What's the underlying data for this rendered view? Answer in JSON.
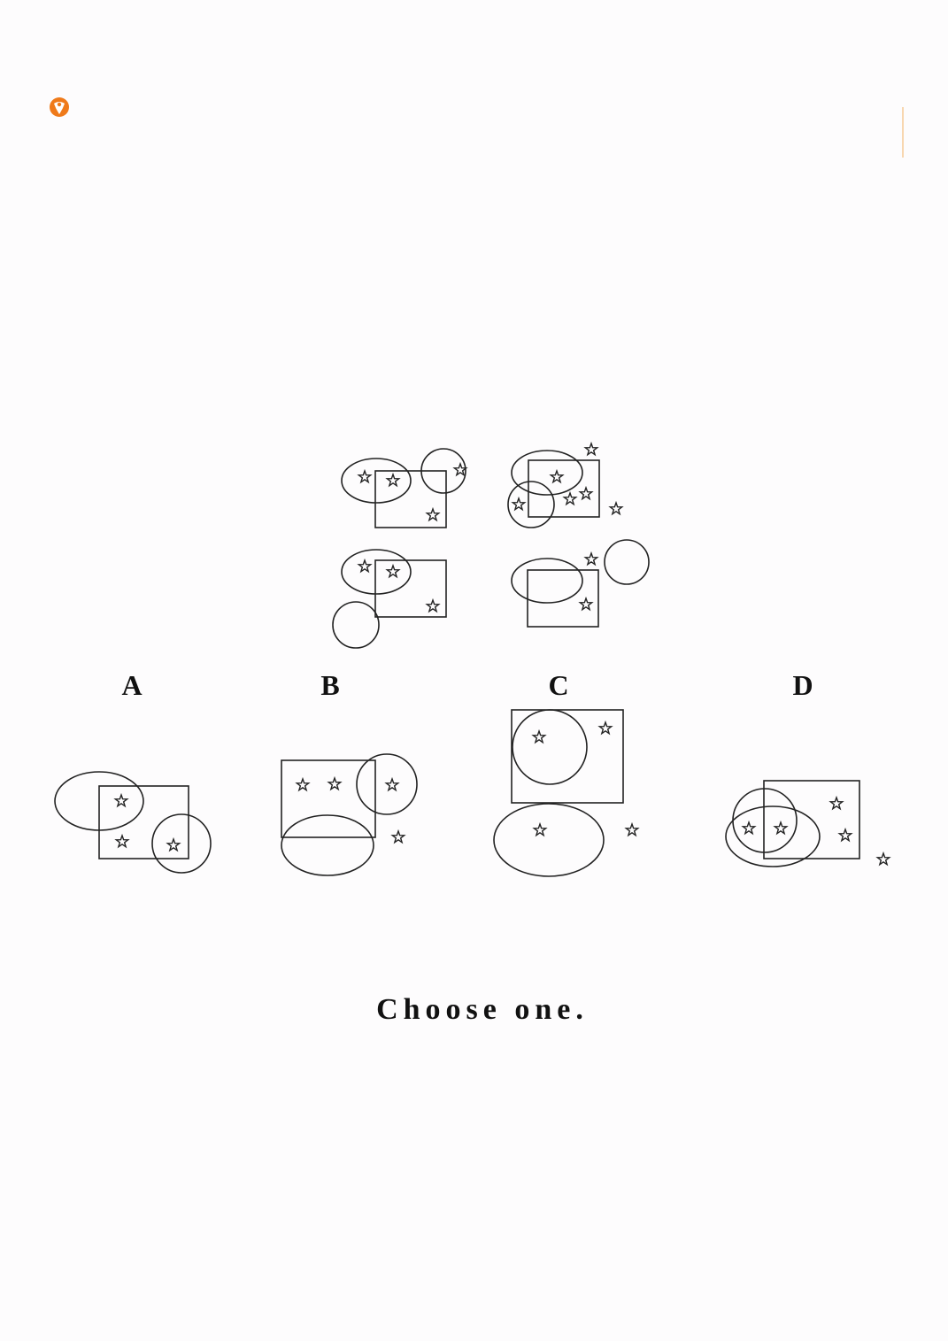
{
  "header": {
    "accent_color": "#ef7a1a",
    "logo_icon": "flame-logo-icon"
  },
  "options": [
    {
      "id": "A",
      "label": "A"
    },
    {
      "id": "B",
      "label": "B"
    },
    {
      "id": "C",
      "label": "C"
    },
    {
      "id": "D",
      "label": "D"
    }
  ],
  "prompt": "Choose one."
}
